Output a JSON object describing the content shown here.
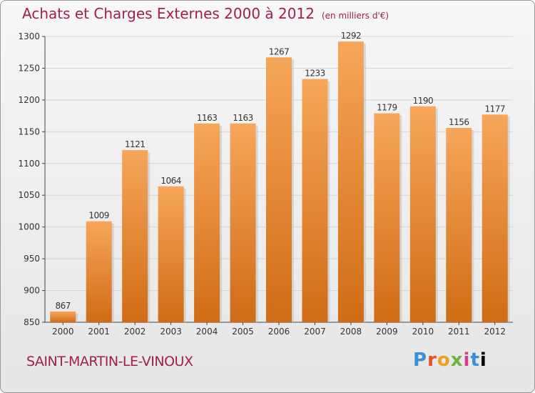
{
  "header": {
    "title": "Achats et Charges Externes 2000 à 2012",
    "unit": "(en milliers d'€)"
  },
  "footer": {
    "commune": "SAINT-MARTIN-LE-VINOUX",
    "logo": [
      "P",
      "r",
      "o",
      "x",
      "i",
      "t",
      "i"
    ]
  },
  "colors": {
    "title": "#a0204c",
    "bar_top": "#f7a65a",
    "bar_bottom": "#d06c15"
  },
  "chart_data": {
    "type": "bar",
    "title": "Achats et Charges Externes 2000 à 2012",
    "subtitle": "(en milliers d'€)",
    "xlabel": "",
    "ylabel": "",
    "categories": [
      "2000",
      "2001",
      "2002",
      "2003",
      "2004",
      "2005",
      "2006",
      "2007",
      "2008",
      "2009",
      "2010",
      "2011",
      "2012"
    ],
    "values": [
      867,
      1009,
      1121,
      1064,
      1163,
      1163,
      1267,
      1233,
      1292,
      1179,
      1190,
      1156,
      1177
    ],
    "ylim": [
      850,
      1300
    ],
    "yticks": [
      850,
      900,
      950,
      1000,
      1050,
      1100,
      1150,
      1200,
      1250,
      1300
    ],
    "grid": true,
    "legend": "none"
  }
}
